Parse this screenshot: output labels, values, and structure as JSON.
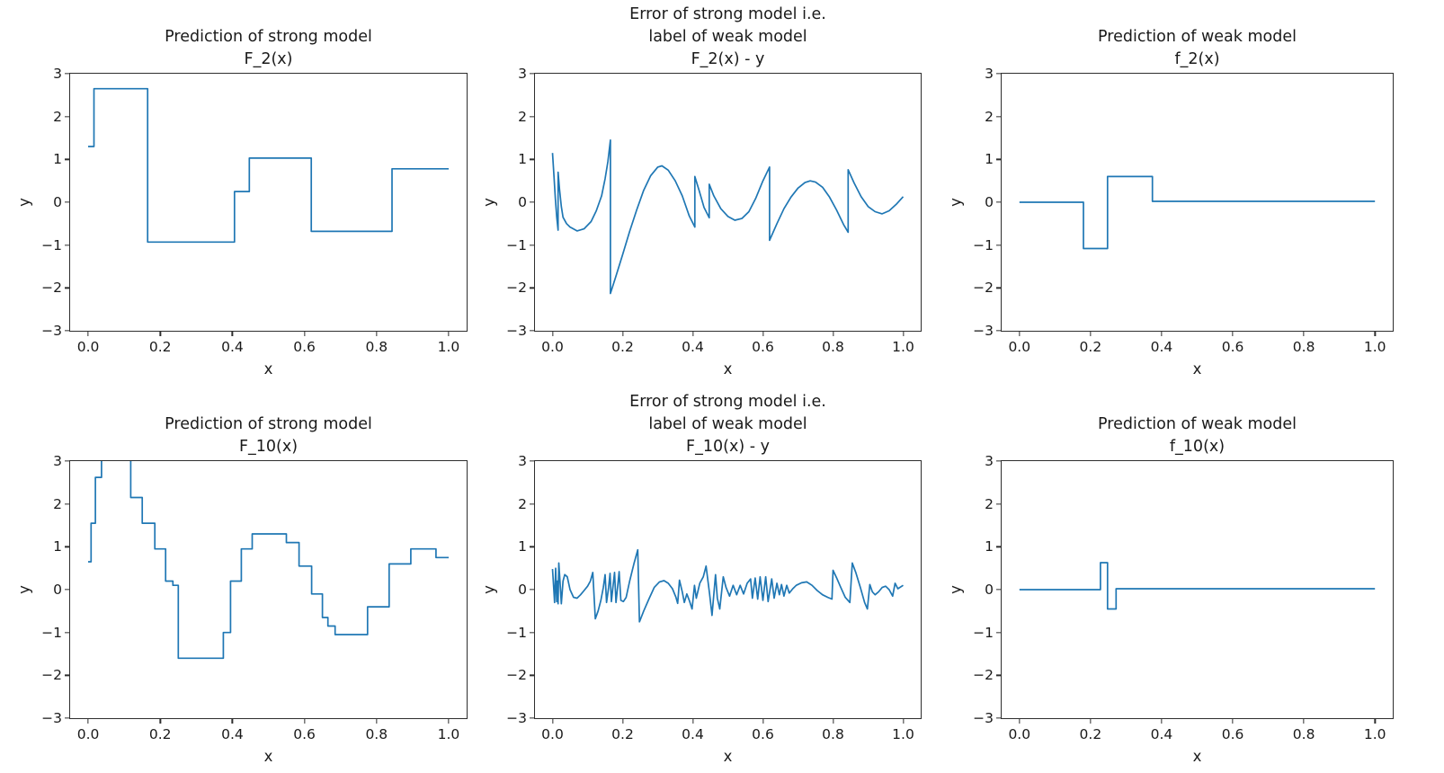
{
  "figure": {
    "background": "#ffffff",
    "text_color": "#1a1a1a",
    "spine_color": "#2e2e2e"
  },
  "chart_data": [
    {
      "type": "line",
      "title": "Prediction of strong model\nF_2(x)",
      "xlabel": "x",
      "ylabel": "y",
      "xlim": [
        -0.05,
        1.05
      ],
      "ylim": [
        -3,
        3
      ],
      "grid": false,
      "legend": null,
      "line_color": "#1f77b4",
      "xticks": {
        "values": [
          0.0,
          0.2,
          0.4,
          0.6,
          0.8,
          1.0
        ],
        "labels": [
          "0.0",
          "0.2",
          "0.4",
          "0.6",
          "0.8",
          "1.0"
        ]
      },
      "yticks": {
        "values": [
          -3,
          -2,
          -1,
          0,
          1,
          2,
          3
        ],
        "labels": [
          "−3",
          "−2",
          "−1",
          "0",
          "1",
          "2",
          "3"
        ]
      },
      "points": [
        [
          0,
          1.3
        ],
        [
          0.016,
          1.3
        ],
        [
          0.016,
          2.65
        ],
        [
          0.165,
          2.65
        ],
        [
          0.165,
          -0.93
        ],
        [
          0.406,
          -0.93
        ],
        [
          0.406,
          0.25
        ],
        [
          0.447,
          0.25
        ],
        [
          0.447,
          1.03
        ],
        [
          0.619,
          1.03
        ],
        [
          0.619,
          -0.68
        ],
        [
          0.843,
          -0.68
        ],
        [
          0.843,
          0.78
        ],
        [
          1.0,
          0.78
        ]
      ]
    },
    {
      "type": "line",
      "title": "Error of strong model i.e.\nlabel of weak model\nF_2(x) - y",
      "xlabel": "x",
      "ylabel": "y",
      "xlim": [
        -0.05,
        1.05
      ],
      "ylim": [
        -3,
        3
      ],
      "grid": false,
      "legend": null,
      "line_color": "#1f77b4",
      "xticks": {
        "values": [
          0.0,
          0.2,
          0.4,
          0.6,
          0.8,
          1.0
        ],
        "labels": [
          "0.0",
          "0.2",
          "0.4",
          "0.6",
          "0.8",
          "1.0"
        ]
      },
      "yticks": {
        "values": [
          -3,
          -2,
          -1,
          0,
          1,
          2,
          3
        ],
        "labels": [
          "−3",
          "−2",
          "−1",
          "0",
          "1",
          "2",
          "3"
        ]
      },
      "points": [
        [
          0,
          1.15
        ],
        [
          0.004,
          0.62
        ],
        [
          0.008,
          0.1
        ],
        [
          0.012,
          -0.35
        ],
        [
          0.016,
          -0.65
        ],
        [
          0.016,
          0.7
        ],
        [
          0.02,
          0.3
        ],
        [
          0.025,
          -0.1
        ],
        [
          0.03,
          -0.35
        ],
        [
          0.04,
          -0.5
        ],
        [
          0.05,
          -0.58
        ],
        [
          0.07,
          -0.67
        ],
        [
          0.09,
          -0.62
        ],
        [
          0.11,
          -0.45
        ],
        [
          0.125,
          -0.2
        ],
        [
          0.14,
          0.15
        ],
        [
          0.15,
          0.55
        ],
        [
          0.158,
          0.95
        ],
        [
          0.165,
          1.45
        ],
        [
          0.165,
          -2.13
        ],
        [
          0.18,
          -1.75
        ],
        [
          0.2,
          -1.22
        ],
        [
          0.22,
          -0.68
        ],
        [
          0.24,
          -0.18
        ],
        [
          0.26,
          0.28
        ],
        [
          0.28,
          0.62
        ],
        [
          0.3,
          0.82
        ],
        [
          0.312,
          0.85
        ],
        [
          0.33,
          0.75
        ],
        [
          0.35,
          0.5
        ],
        [
          0.37,
          0.15
        ],
        [
          0.39,
          -0.32
        ],
        [
          0.406,
          -0.58
        ],
        [
          0.406,
          0.6
        ],
        [
          0.418,
          0.28
        ],
        [
          0.432,
          -0.12
        ],
        [
          0.447,
          -0.36
        ],
        [
          0.447,
          0.42
        ],
        [
          0.46,
          0.15
        ],
        [
          0.48,
          -0.15
        ],
        [
          0.5,
          -0.33
        ],
        [
          0.52,
          -0.42
        ],
        [
          0.54,
          -0.38
        ],
        [
          0.56,
          -0.22
        ],
        [
          0.58,
          0.1
        ],
        [
          0.6,
          0.5
        ],
        [
          0.619,
          0.82
        ],
        [
          0.619,
          -0.89
        ],
        [
          0.64,
          -0.5
        ],
        [
          0.66,
          -0.15
        ],
        [
          0.68,
          0.12
        ],
        [
          0.7,
          0.33
        ],
        [
          0.72,
          0.46
        ],
        [
          0.735,
          0.5
        ],
        [
          0.75,
          0.47
        ],
        [
          0.77,
          0.35
        ],
        [
          0.79,
          0.12
        ],
        [
          0.81,
          -0.18
        ],
        [
          0.83,
          -0.52
        ],
        [
          0.843,
          -0.7
        ],
        [
          0.843,
          0.76
        ],
        [
          0.86,
          0.45
        ],
        [
          0.88,
          0.13
        ],
        [
          0.9,
          -0.1
        ],
        [
          0.92,
          -0.22
        ],
        [
          0.94,
          -0.27
        ],
        [
          0.96,
          -0.2
        ],
        [
          0.98,
          -0.05
        ],
        [
          1.0,
          0.13
        ]
      ]
    },
    {
      "type": "line",
      "title": "Prediction of weak model\nf_2(x)",
      "xlabel": "x",
      "ylabel": "y",
      "xlim": [
        -0.05,
        1.05
      ],
      "ylim": [
        -3,
        3
      ],
      "grid": false,
      "legend": null,
      "line_color": "#1f77b4",
      "xticks": {
        "values": [
          0.0,
          0.2,
          0.4,
          0.6,
          0.8,
          1.0
        ],
        "labels": [
          "0.0",
          "0.2",
          "0.4",
          "0.6",
          "0.8",
          "1.0"
        ]
      },
      "yticks": {
        "values": [
          -3,
          -2,
          -1,
          0,
          1,
          2,
          3
        ],
        "labels": [
          "−3",
          "−2",
          "−1",
          "0",
          "1",
          "2",
          "3"
        ]
      },
      "points": [
        [
          0,
          0
        ],
        [
          0.18,
          0
        ],
        [
          0.18,
          -1.08
        ],
        [
          0.248,
          -1.08
        ],
        [
          0.248,
          0.6
        ],
        [
          0.374,
          0.6
        ],
        [
          0.374,
          0.02
        ],
        [
          1.0,
          0.02
        ]
      ]
    },
    {
      "type": "line",
      "title": "Prediction of strong model\nF_10(x)",
      "xlabel": "x",
      "ylabel": "y",
      "xlim": [
        -0.05,
        1.05
      ],
      "ylim": [
        -3,
        3
      ],
      "grid": false,
      "legend": null,
      "line_color": "#1f77b4",
      "xticks": {
        "values": [
          0.0,
          0.2,
          0.4,
          0.6,
          0.8,
          1.0
        ],
        "labels": [
          "0.0",
          "0.2",
          "0.4",
          "0.6",
          "0.8",
          "1.0"
        ]
      },
      "yticks": {
        "values": [
          -3,
          -2,
          -1,
          0,
          1,
          2,
          3
        ],
        "labels": [
          "−3",
          "−2",
          "−1",
          "0",
          "1",
          "2",
          "3"
        ]
      },
      "points": [
        [
          0,
          0.65
        ],
        [
          0.008,
          0.65
        ],
        [
          0.008,
          1.55
        ],
        [
          0.02,
          1.55
        ],
        [
          0.02,
          2.62
        ],
        [
          0.037,
          2.62
        ],
        [
          0.037,
          3.12
        ],
        [
          0.118,
          3.12
        ],
        [
          0.118,
          2.15
        ],
        [
          0.15,
          2.15
        ],
        [
          0.15,
          1.55
        ],
        [
          0.185,
          1.55
        ],
        [
          0.185,
          0.95
        ],
        [
          0.215,
          0.95
        ],
        [
          0.215,
          0.2
        ],
        [
          0.235,
          0.2
        ],
        [
          0.235,
          0.1
        ],
        [
          0.25,
          0.1
        ],
        [
          0.25,
          -1.6
        ],
        [
          0.375,
          -1.6
        ],
        [
          0.375,
          -1.0
        ],
        [
          0.395,
          -1.0
        ],
        [
          0.395,
          0.2
        ],
        [
          0.425,
          0.2
        ],
        [
          0.425,
          0.95
        ],
        [
          0.455,
          0.95
        ],
        [
          0.455,
          1.3
        ],
        [
          0.55,
          1.3
        ],
        [
          0.55,
          1.1
        ],
        [
          0.585,
          1.1
        ],
        [
          0.585,
          0.55
        ],
        [
          0.62,
          0.55
        ],
        [
          0.62,
          -0.1
        ],
        [
          0.65,
          -0.1
        ],
        [
          0.65,
          -0.65
        ],
        [
          0.665,
          -0.65
        ],
        [
          0.665,
          -0.85
        ],
        [
          0.685,
          -0.85
        ],
        [
          0.685,
          -1.05
        ],
        [
          0.775,
          -1.05
        ],
        [
          0.775,
          -0.4
        ],
        [
          0.835,
          -0.4
        ],
        [
          0.835,
          0.6
        ],
        [
          0.895,
          0.6
        ],
        [
          0.895,
          0.95
        ],
        [
          0.965,
          0.95
        ],
        [
          0.965,
          0.75
        ],
        [
          1.0,
          0.75
        ]
      ]
    },
    {
      "type": "line",
      "title": "Error of strong model i.e.\nlabel of weak model\nF_10(x) - y",
      "xlabel": "x",
      "ylabel": "y",
      "xlim": [
        -0.05,
        1.05
      ],
      "ylim": [
        -3,
        3
      ],
      "grid": false,
      "legend": null,
      "line_color": "#1f77b4",
      "xticks": {
        "values": [
          0.0,
          0.2,
          0.4,
          0.6,
          0.8,
          1.0
        ],
        "labels": [
          "0.0",
          "0.2",
          "0.4",
          "0.6",
          "0.8",
          "1.0"
        ]
      },
      "yticks": {
        "values": [
          -3,
          -2,
          -1,
          0,
          1,
          2,
          3
        ],
        "labels": [
          "−3",
          "−2",
          "−1",
          "0",
          "1",
          "2",
          "3"
        ]
      },
      "points": [
        [
          0,
          0.48
        ],
        [
          0.004,
          -0.05
        ],
        [
          0.006,
          -0.3
        ],
        [
          0.009,
          0.5
        ],
        [
          0.012,
          -0.28
        ],
        [
          0.014,
          0.2
        ],
        [
          0.016,
          -0.33
        ],
        [
          0.018,
          0.62
        ],
        [
          0.022,
          0.1
        ],
        [
          0.025,
          -0.33
        ],
        [
          0.03,
          0.2
        ],
        [
          0.035,
          0.35
        ],
        [
          0.042,
          0.3
        ],
        [
          0.05,
          0.0
        ],
        [
          0.06,
          -0.18
        ],
        [
          0.07,
          -0.2
        ],
        [
          0.08,
          -0.12
        ],
        [
          0.09,
          -0.02
        ],
        [
          0.1,
          0.08
        ],
        [
          0.108,
          0.2
        ],
        [
          0.115,
          0.4
        ],
        [
          0.122,
          -0.68
        ],
        [
          0.13,
          -0.5
        ],
        [
          0.138,
          -0.25
        ],
        [
          0.145,
          0.05
        ],
        [
          0.15,
          0.35
        ],
        [
          0.154,
          -0.3
        ],
        [
          0.16,
          0.05
        ],
        [
          0.164,
          0.38
        ],
        [
          0.168,
          -0.28
        ],
        [
          0.173,
          0.12
        ],
        [
          0.177,
          0.4
        ],
        [
          0.181,
          -0.3
        ],
        [
          0.186,
          0.08
        ],
        [
          0.19,
          0.42
        ],
        [
          0.195,
          -0.25
        ],
        [
          0.202,
          -0.28
        ],
        [
          0.21,
          -0.18
        ],
        [
          0.22,
          0.2
        ],
        [
          0.232,
          0.6
        ],
        [
          0.243,
          0.93
        ],
        [
          0.248,
          -0.75
        ],
        [
          0.26,
          -0.5
        ],
        [
          0.275,
          -0.22
        ],
        [
          0.29,
          0.05
        ],
        [
          0.305,
          0.18
        ],
        [
          0.318,
          0.21
        ],
        [
          0.33,
          0.15
        ],
        [
          0.342,
          0.02
        ],
        [
          0.352,
          -0.18
        ],
        [
          0.357,
          -0.32
        ],
        [
          0.362,
          0.22
        ],
        [
          0.37,
          -0.05
        ],
        [
          0.376,
          -0.3
        ],
        [
          0.383,
          -0.1
        ],
        [
          0.39,
          -0.25
        ],
        [
          0.398,
          -0.45
        ],
        [
          0.405,
          0.1
        ],
        [
          0.41,
          -0.2
        ],
        [
          0.42,
          0.15
        ],
        [
          0.43,
          0.3
        ],
        [
          0.438,
          0.55
        ],
        [
          0.448,
          -0.1
        ],
        [
          0.455,
          -0.6
        ],
        [
          0.465,
          0.35
        ],
        [
          0.47,
          -0.2
        ],
        [
          0.477,
          -0.45
        ],
        [
          0.487,
          0.3
        ],
        [
          0.495,
          0.05
        ],
        [
          0.505,
          -0.15
        ],
        [
          0.515,
          0.1
        ],
        [
          0.525,
          -0.12
        ],
        [
          0.535,
          0.1
        ],
        [
          0.545,
          -0.1
        ],
        [
          0.555,
          0.15
        ],
        [
          0.565,
          0.25
        ],
        [
          0.57,
          -0.2
        ],
        [
          0.578,
          0.27
        ],
        [
          0.585,
          -0.22
        ],
        [
          0.592,
          0.3
        ],
        [
          0.6,
          -0.25
        ],
        [
          0.608,
          0.3
        ],
        [
          0.615,
          -0.28
        ],
        [
          0.625,
          0.25
        ],
        [
          0.632,
          -0.2
        ],
        [
          0.64,
          0.15
        ],
        [
          0.647,
          -0.12
        ],
        [
          0.653,
          0.12
        ],
        [
          0.66,
          -0.15
        ],
        [
          0.668,
          0.1
        ],
        [
          0.675,
          -0.08
        ],
        [
          0.685,
          0.02
        ],
        [
          0.695,
          0.1
        ],
        [
          0.71,
          0.16
        ],
        [
          0.725,
          0.18
        ],
        [
          0.74,
          0.1
        ],
        [
          0.755,
          -0.02
        ],
        [
          0.77,
          -0.12
        ],
        [
          0.785,
          -0.18
        ],
        [
          0.797,
          -0.22
        ],
        [
          0.8,
          0.45
        ],
        [
          0.81,
          0.28
        ],
        [
          0.822,
          0.05
        ],
        [
          0.835,
          -0.18
        ],
        [
          0.848,
          -0.3
        ],
        [
          0.855,
          0.62
        ],
        [
          0.865,
          0.4
        ],
        [
          0.878,
          0.05
        ],
        [
          0.89,
          -0.3
        ],
        [
          0.898,
          -0.45
        ],
        [
          0.905,
          0.12
        ],
        [
          0.912,
          -0.05
        ],
        [
          0.92,
          -0.12
        ],
        [
          0.93,
          -0.05
        ],
        [
          0.94,
          0.05
        ],
        [
          0.95,
          0.08
        ],
        [
          0.96,
          0.0
        ],
        [
          0.97,
          -0.15
        ],
        [
          0.977,
          0.15
        ],
        [
          0.985,
          0.02
        ],
        [
          1.0,
          0.1
        ]
      ]
    },
    {
      "type": "line",
      "title": "Prediction of weak model\nf_10(x)",
      "xlabel": "x",
      "ylabel": "y",
      "xlim": [
        -0.05,
        1.05
      ],
      "ylim": [
        -3,
        3
      ],
      "grid": false,
      "legend": null,
      "line_color": "#1f77b4",
      "xticks": {
        "values": [
          0.0,
          0.2,
          0.4,
          0.6,
          0.8,
          1.0
        ],
        "labels": [
          "0.0",
          "0.2",
          "0.4",
          "0.6",
          "0.8",
          "1.0"
        ]
      },
      "yticks": {
        "values": [
          -3,
          -2,
          -1,
          0,
          1,
          2,
          3
        ],
        "labels": [
          "−3",
          "−2",
          "−1",
          "0",
          "1",
          "2",
          "3"
        ]
      },
      "points": [
        [
          0,
          0
        ],
        [
          0.228,
          0
        ],
        [
          0.228,
          0.63
        ],
        [
          0.248,
          0.63
        ],
        [
          0.248,
          -0.45
        ],
        [
          0.272,
          -0.45
        ],
        [
          0.272,
          0.02
        ],
        [
          1.0,
          0.02
        ]
      ]
    }
  ]
}
